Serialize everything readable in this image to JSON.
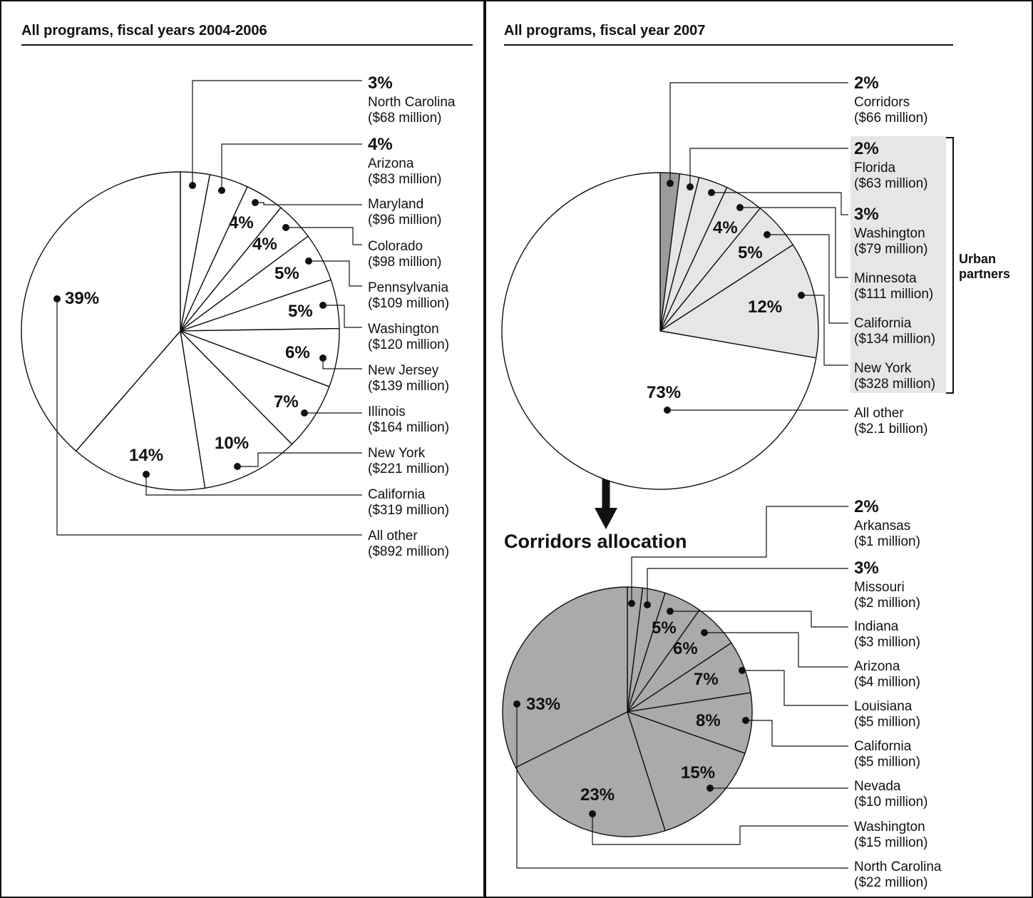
{
  "colors": {
    "white_slice": "#ffffff",
    "urban_partners_fill": "#e6e6e6",
    "corridors_slice": "#9a9b9d",
    "corridors_pie": "#a9aaac",
    "ink": "#111111"
  },
  "chart_data": [
    {
      "type": "pie",
      "title": "All programs, fiscal years 2004-2006",
      "slices": [
        {
          "name": "North Carolina",
          "amount": "($68 million)",
          "percent": 3,
          "label": "3%"
        },
        {
          "name": "Arizona",
          "amount": "($83 million)",
          "percent": 4,
          "label": "4%"
        },
        {
          "name": "Maryland",
          "amount": "($96 million)",
          "percent": 4,
          "label": "4%"
        },
        {
          "name": "Colorado",
          "amount": "($98 million)",
          "percent": 4,
          "label": "4%"
        },
        {
          "name": "Pennsylvania",
          "amount": "($109 million)",
          "percent": 5,
          "label": "5%"
        },
        {
          "name": "Washington",
          "amount": "($120 million)",
          "percent": 5,
          "label": "5%"
        },
        {
          "name": "New Jersey",
          "amount": "($139 million)",
          "percent": 6,
          "label": "6%"
        },
        {
          "name": "Illinois",
          "amount": "($164 million)",
          "percent": 7,
          "label": "7%"
        },
        {
          "name": "New York",
          "amount": "($221 million)",
          "percent": 10,
          "label": "10%"
        },
        {
          "name": "California",
          "amount": "($319 million)",
          "percent": 14,
          "label": "14%"
        },
        {
          "name": "All other",
          "amount": "($892 million)",
          "percent": 39,
          "label": "39%"
        }
      ]
    },
    {
      "type": "pie",
      "title": "All programs, fiscal year 2007",
      "group_label": "Urban partners",
      "slices": [
        {
          "name": "Corridors",
          "amount": "($66 million)",
          "percent": 2,
          "label": "2%"
        },
        {
          "name": "Florida",
          "amount": "($63 million)",
          "percent": 2,
          "label": "2%"
        },
        {
          "name": "Washington",
          "amount": "($79 million)",
          "percent": 3,
          "label": "3%"
        },
        {
          "name": "Minnesota",
          "amount": "($111 million)",
          "percent": 4,
          "label": "4%"
        },
        {
          "name": "California",
          "amount": "($134 million)",
          "percent": 5,
          "label": "5%"
        },
        {
          "name": "New York",
          "amount": "($328 million)",
          "percent": 12,
          "label": "12%"
        },
        {
          "name": "All other",
          "amount": "($2.1 billion)",
          "percent": 73,
          "label": "73%"
        }
      ]
    },
    {
      "type": "pie",
      "title": "Corridors allocation",
      "slices": [
        {
          "name": "Arkansas",
          "amount": "($1 million)",
          "percent": 2,
          "label": "2%"
        },
        {
          "name": "Missouri",
          "amount": "($2 million)",
          "percent": 3,
          "label": "3%"
        },
        {
          "name": "Indiana",
          "amount": "($3 million)",
          "percent": 5,
          "label": "5%"
        },
        {
          "name": "Arizona",
          "amount": "($4 million)",
          "percent": 6,
          "label": "6%"
        },
        {
          "name": "Louisiana",
          "amount": "($5 million)",
          "percent": 7,
          "label": "7%"
        },
        {
          "name": "California",
          "amount": "($5 million)",
          "percent": 8,
          "label": "8%"
        },
        {
          "name": "Nevada",
          "amount": "($10 million)",
          "percent": 15,
          "label": "15%"
        },
        {
          "name": "Washington",
          "amount": "($15 million)",
          "percent": 23,
          "label": "23%"
        },
        {
          "name": "North Carolina",
          "amount": "($22 million)",
          "percent": 33,
          "label": "33%"
        }
      ]
    }
  ]
}
